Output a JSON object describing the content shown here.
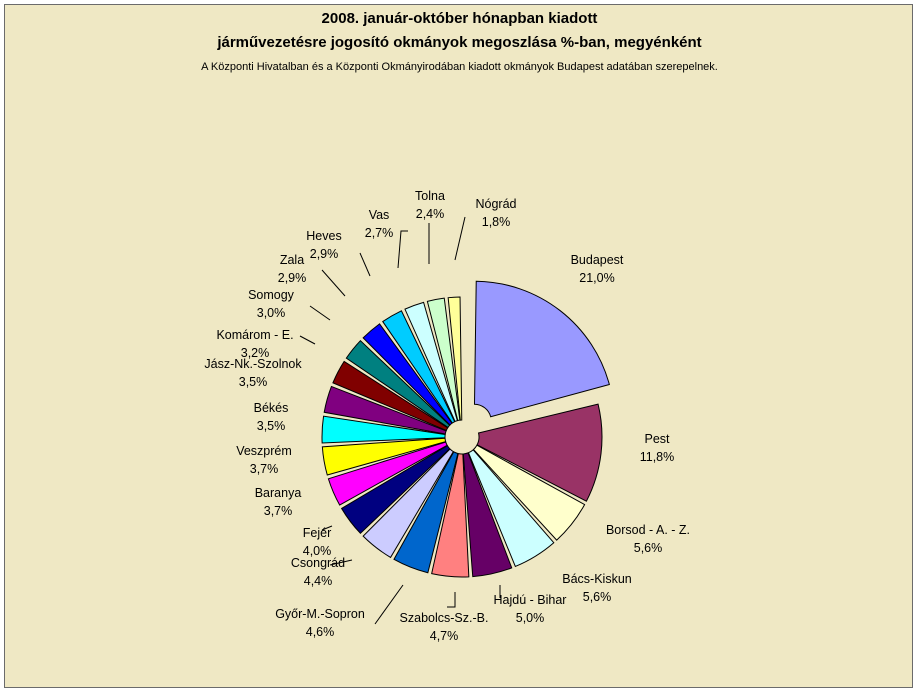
{
  "title": "2008. január-október hónapban kiadott",
  "subtitle": "járművezetésre jogosító okmányok megoszlása %-ban, megyénként",
  "note": "A Központi Hivatalban és a Központi Okmányirodában kiadott okmányok Budapest adatában szerepelnek.",
  "chart_data": {
    "type": "pie",
    "title": "2008. január-október hónapban kiadott járművezetésre jogosító okmányok megoszlása %-ban, megyénként",
    "subtitle": "A Központi Hivatalban és a Központi Okmányirodában kiadott okmányok Budapest adatában szerepelnek.",
    "legend": "none",
    "exploded": true,
    "slices": [
      {
        "label": "Budapest",
        "value": 21.0,
        "text": "21,0%",
        "color": "#9999ff"
      },
      {
        "label": "Pest",
        "value": 11.8,
        "text": "11,8%",
        "color": "#993366"
      },
      {
        "label": "Borsod - A. - Z.",
        "value": 5.6,
        "text": "5,6%",
        "color": "#ffffcc"
      },
      {
        "label": "Bács-Kiskun",
        "value": 5.6,
        "text": "5,6%",
        "color": "#ccffff"
      },
      {
        "label": "Hajdú - Bihar",
        "value": 5.0,
        "text": "5,0%",
        "color": "#660066"
      },
      {
        "label": "Szabolcs-Sz.-B.",
        "value": 4.7,
        "text": "4,7%",
        "color": "#ff8080"
      },
      {
        "label": "Győr-M.-Sopron",
        "value": 4.6,
        "text": "4,6%",
        "color": "#0066cc"
      },
      {
        "label": "Csongrád",
        "value": 4.4,
        "text": "4,4%",
        "color": "#ccccff"
      },
      {
        "label": "Fejér",
        "value": 4.0,
        "text": "4,0%",
        "color": "#000080"
      },
      {
        "label": "Baranya",
        "value": 3.7,
        "text": "3,7%",
        "color": "#ff00ff"
      },
      {
        "label": "Veszprém",
        "value": 3.7,
        "text": "3,7%",
        "color": "#ffff00"
      },
      {
        "label": "Békés",
        "value": 3.5,
        "text": "3,5%",
        "color": "#00ffff"
      },
      {
        "label": "Jász-Nk.-Szolnok",
        "value": 3.5,
        "text": "3,5%",
        "color": "#800080"
      },
      {
        "label": "Komárom - E.",
        "value": 3.2,
        "text": "3,2%",
        "color": "#800000"
      },
      {
        "label": "Somogy",
        "value": 3.0,
        "text": "3,0%",
        "color": "#008080"
      },
      {
        "label": "Zala",
        "value": 2.9,
        "text": "2,9%",
        "color": "#0000ff"
      },
      {
        "label": "Heves",
        "value": 2.9,
        "text": "2,9%",
        "color": "#00ccff"
      },
      {
        "label": "Vas",
        "value": 2.7,
        "text": "2,7%",
        "color": "#ccffff"
      },
      {
        "label": "Tolna",
        "value": 2.4,
        "text": "2,4%",
        "color": "#ccffcc"
      },
      {
        "label": "Nógrád",
        "value": 1.8,
        "text": "1,8%",
        "color": "#ffff99"
      }
    ]
  }
}
